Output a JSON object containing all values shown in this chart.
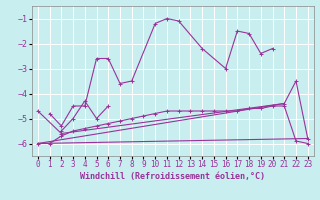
{
  "xlabel": "Windchill (Refroidissement éolien,°C)",
  "background_color": "#c8eef0",
  "grid_color": "#ffffff",
  "line_color": "#993399",
  "x_ticks": [
    0,
    1,
    2,
    3,
    4,
    5,
    6,
    7,
    8,
    9,
    10,
    11,
    12,
    13,
    14,
    15,
    16,
    17,
    18,
    19,
    20,
    21,
    22,
    23
  ],
  "ylim": [
    -6.5,
    -0.5
  ],
  "xlim": [
    -0.5,
    23.5
  ],
  "yticks": [
    -6,
    -5,
    -4,
    -3,
    -2,
    -1
  ],
  "line1_x": [
    1,
    2,
    3,
    4,
    5,
    6,
    7,
    8,
    10,
    11,
    12,
    14,
    16,
    17,
    18,
    19,
    20
  ],
  "line1_y": [
    -4.8,
    -5.3,
    -4.5,
    -4.5,
    -2.6,
    -2.6,
    -3.6,
    -3.5,
    -1.2,
    -1.0,
    -1.1,
    -2.2,
    -3.0,
    -1.5,
    -1.6,
    -2.4,
    -2.2
  ],
  "line2_x": [
    2,
    3,
    4,
    5,
    6
  ],
  "line2_y": [
    -5.5,
    -5.0,
    -4.3,
    -5.0,
    -4.5
  ],
  "line3_x": [
    0,
    2,
    21,
    22,
    23
  ],
  "line3_y": [
    -4.7,
    -5.6,
    -4.4,
    -3.5,
    -5.8
  ],
  "line4_x": [
    0,
    1,
    2,
    3,
    4,
    5,
    6,
    7,
    8,
    9,
    10,
    11,
    12,
    13,
    14,
    15,
    16,
    17,
    18,
    19,
    20,
    21,
    22,
    23
  ],
  "line4_y": [
    -6.0,
    -6.0,
    -5.7,
    -5.5,
    -5.4,
    -5.3,
    -5.2,
    -5.1,
    -5.0,
    -4.9,
    -4.8,
    -4.7,
    -4.7,
    -4.7,
    -4.7,
    -4.7,
    -4.7,
    -4.7,
    -4.6,
    -4.6,
    -4.5,
    -4.5,
    -5.9,
    -6.0
  ],
  "line5_x": [
    0,
    23
  ],
  "line5_y": [
    -6.0,
    -5.8
  ],
  "line6_x": [
    0,
    21
  ],
  "line6_y": [
    -6.0,
    -4.4
  ],
  "xlabel_fontsize": 6,
  "tick_fontsize": 5.5
}
